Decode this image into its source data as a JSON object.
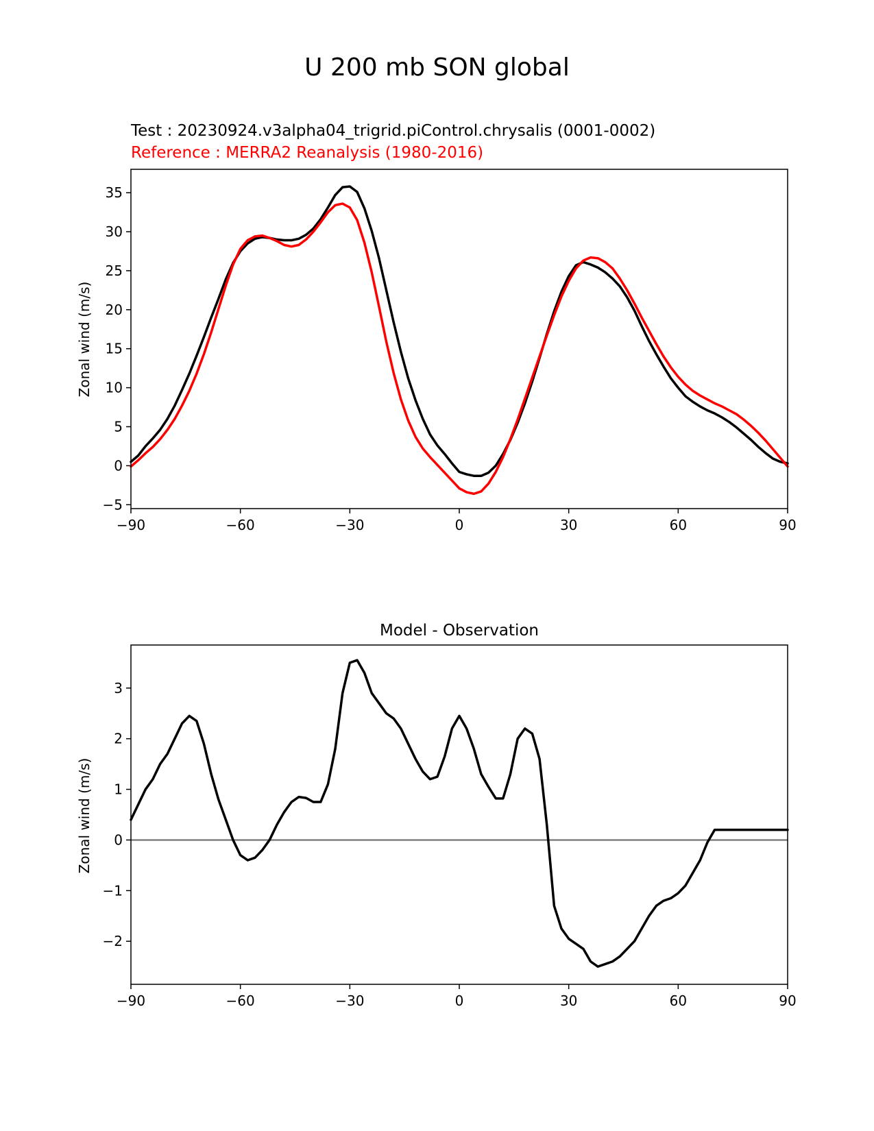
{
  "figure": {
    "suptitle": "U 200 mb SON global"
  },
  "chart_data": [
    {
      "type": "line",
      "test_label": "Test : 20230924.v3alpha04_trigrid.piControl.chrysalis (0001-0002)",
      "reference_label": "Reference : MERRA2 Reanalysis (1980-2016)",
      "title": "",
      "xlabel": "",
      "ylabel": "Zonal wind (m/s)",
      "xlim": [
        -90,
        90
      ],
      "ylim": [
        -5.5,
        38
      ],
      "xticks": [
        -90,
        -60,
        -30,
        0,
        30,
        60,
        90
      ],
      "xtick_labels": [
        "−90",
        "−60",
        "−30",
        "0",
        "30",
        "60",
        "90"
      ],
      "yticks": [
        -5,
        0,
        5,
        10,
        15,
        20,
        25,
        30,
        35
      ],
      "ytick_labels": [
        "−5",
        "0",
        "5",
        "10",
        "15",
        "20",
        "25",
        "30",
        "35"
      ],
      "grid": false,
      "series": [
        {
          "role": "test",
          "color": "#000000",
          "x": [
            -90,
            -88,
            -86,
            -84,
            -82,
            -80,
            -78,
            -76,
            -74,
            -72,
            -70,
            -68,
            -66,
            -64,
            -62,
            -60,
            -58,
            -56,
            -54,
            -52,
            -50,
            -48,
            -46,
            -44,
            -42,
            -40,
            -38,
            -36,
            -34,
            -32,
            -30,
            -28,
            -26,
            -24,
            -22,
            -20,
            -18,
            -16,
            -14,
            -12,
            -10,
            -8,
            -6,
            -4,
            -2,
            0,
            2,
            4,
            6,
            8,
            10,
            12,
            14,
            16,
            18,
            20,
            22,
            24,
            26,
            28,
            30,
            32,
            34,
            36,
            38,
            40,
            42,
            44,
            46,
            48,
            50,
            52,
            54,
            56,
            58,
            60,
            62,
            64,
            66,
            68,
            70,
            72,
            74,
            76,
            78,
            80,
            82,
            84,
            86,
            88,
            90
          ],
          "y": [
            0.5,
            1.3,
            2.5,
            3.5,
            4.6,
            6.0,
            7.7,
            9.7,
            11.8,
            14.1,
            16.5,
            19.0,
            21.4,
            23.9,
            26.0,
            27.5,
            28.5,
            29.1,
            29.3,
            29.2,
            29.0,
            28.9,
            28.9,
            29.1,
            29.6,
            30.4,
            31.6,
            33.1,
            34.7,
            35.7,
            35.8,
            35.1,
            33.0,
            30.1,
            26.6,
            22.5,
            18.4,
            14.6,
            11.2,
            8.4,
            6.0,
            4.0,
            2.6,
            1.5,
            0.3,
            -0.8,
            -1.1,
            -1.3,
            -1.3,
            -0.9,
            0.0,
            1.5,
            3.3,
            5.5,
            8.0,
            10.8,
            13.8,
            16.9,
            19.8,
            22.3,
            24.3,
            25.7,
            26.1,
            25.8,
            25.4,
            24.8,
            24.0,
            23.0,
            21.6,
            19.9,
            17.9,
            16.0,
            14.3,
            12.7,
            11.2,
            10.0,
            8.9,
            8.2,
            7.6,
            7.1,
            6.7,
            6.2,
            5.6,
            4.9,
            4.1,
            3.3,
            2.4,
            1.6,
            0.9,
            0.5,
            0.3
          ]
        },
        {
          "role": "reference",
          "color": "#ff0000",
          "x": [
            -90,
            -88,
            -86,
            -84,
            -82,
            -80,
            -78,
            -76,
            -74,
            -72,
            -70,
            -68,
            -66,
            -64,
            -62,
            -60,
            -58,
            -56,
            -54,
            -52,
            -50,
            -48,
            -46,
            -44,
            -42,
            -40,
            -38,
            -36,
            -34,
            -32,
            -30,
            -28,
            -26,
            -24,
            -22,
            -20,
            -18,
            -16,
            -14,
            -12,
            -10,
            -8,
            -6,
            -4,
            -2,
            0,
            2,
            4,
            6,
            8,
            10,
            12,
            14,
            16,
            18,
            20,
            22,
            24,
            26,
            28,
            30,
            32,
            34,
            36,
            38,
            40,
            42,
            44,
            46,
            48,
            50,
            52,
            54,
            56,
            58,
            60,
            62,
            64,
            66,
            68,
            70,
            72,
            74,
            76,
            78,
            80,
            82,
            84,
            86,
            88,
            90
          ],
          "y": [
            -0.1,
            0.7,
            1.6,
            2.4,
            3.4,
            4.6,
            6.0,
            7.7,
            9.6,
            11.8,
            14.3,
            17.1,
            20.1,
            23.1,
            25.8,
            27.8,
            28.9,
            29.4,
            29.5,
            29.2,
            28.8,
            28.3,
            28.1,
            28.3,
            29.0,
            30.0,
            31.2,
            32.5,
            33.4,
            33.6,
            33.1,
            31.5,
            28.6,
            24.8,
            20.4,
            15.9,
            11.9,
            8.5,
            5.8,
            3.7,
            2.2,
            1.1,
            0.1,
            -0.9,
            -1.9,
            -2.9,
            -3.4,
            -3.6,
            -3.3,
            -2.3,
            -0.8,
            1.1,
            3.4,
            5.9,
            8.6,
            11.3,
            14.0,
            16.7,
            19.3,
            21.7,
            23.7,
            25.3,
            26.3,
            26.7,
            26.6,
            26.1,
            25.3,
            24.0,
            22.5,
            20.8,
            19.0,
            17.3,
            15.6,
            14.0,
            12.6,
            11.4,
            10.4,
            9.6,
            9.0,
            8.5,
            8.0,
            7.6,
            7.1,
            6.6,
            5.9,
            5.1,
            4.2,
            3.2,
            2.1,
            1.0,
            -0.1
          ]
        }
      ]
    },
    {
      "type": "line",
      "title": "Model - Observation",
      "xlabel": "",
      "ylabel": "Zonal wind (m/s)",
      "xlim": [
        -90,
        90
      ],
      "ylim": [
        -2.85,
        3.85
      ],
      "xticks": [
        -90,
        -60,
        -30,
        0,
        30,
        60,
        90
      ],
      "xtick_labels": [
        "−90",
        "−60",
        "−30",
        "0",
        "30",
        "60",
        "90"
      ],
      "yticks": [
        -2,
        -1,
        0,
        1,
        2,
        3
      ],
      "ytick_labels": [
        "−2",
        "−1",
        "0",
        "1",
        "2",
        "3"
      ],
      "grid": false,
      "zero_line_color": "#808080",
      "series": [
        {
          "role": "difference",
          "color": "#000000",
          "x": [
            -90,
            -88,
            -86,
            -84,
            -82,
            -80,
            -78,
            -76,
            -74,
            -72,
            -70,
            -68,
            -66,
            -64,
            -62,
            -60,
            -58,
            -56,
            -54,
            -52,
            -50,
            -48,
            -46,
            -44,
            -42,
            -40,
            -38,
            -36,
            -34,
            -32,
            -30,
            -28,
            -26,
            -24,
            -22,
            -20,
            -18,
            -16,
            -14,
            -12,
            -10,
            -8,
            -6,
            -4,
            -2,
            0,
            2,
            4,
            6,
            8,
            10,
            12,
            14,
            16,
            18,
            20,
            22,
            24,
            26,
            28,
            30,
            32,
            34,
            36,
            38,
            40,
            42,
            44,
            46,
            48,
            50,
            52,
            54,
            56,
            58,
            60,
            62,
            64,
            66,
            68,
            70,
            72,
            74,
            76,
            78,
            80,
            82,
            84,
            86,
            88,
            90
          ],
          "y": [
            0.4,
            0.7,
            1.0,
            1.2,
            1.5,
            1.7,
            2.0,
            2.3,
            2.45,
            2.35,
            1.9,
            1.3,
            0.8,
            0.4,
            0.0,
            -0.3,
            -0.4,
            -0.35,
            -0.2,
            0.0,
            0.3,
            0.55,
            0.75,
            0.85,
            0.83,
            0.75,
            0.75,
            1.1,
            1.8,
            2.9,
            3.5,
            3.55,
            3.3,
            2.9,
            2.7,
            2.5,
            2.4,
            2.2,
            1.9,
            1.6,
            1.35,
            1.2,
            1.25,
            1.65,
            2.2,
            2.45,
            2.2,
            1.8,
            1.3,
            1.05,
            0.82,
            0.82,
            1.3,
            2.0,
            2.2,
            2.1,
            1.6,
            0.3,
            -1.3,
            -1.75,
            -1.95,
            -2.05,
            -2.15,
            -2.4,
            -2.5,
            -2.45,
            -2.4,
            -2.3,
            -2.15,
            -2.0,
            -1.75,
            -1.5,
            -1.3,
            -1.2,
            -1.15,
            -1.05,
            -0.9,
            -0.65,
            -0.4,
            -0.05,
            0.2,
            0.2,
            0.2,
            0.2,
            0.2,
            0.2,
            0.2,
            0.2,
            0.2,
            0.2,
            0.2
          ]
        }
      ]
    }
  ]
}
